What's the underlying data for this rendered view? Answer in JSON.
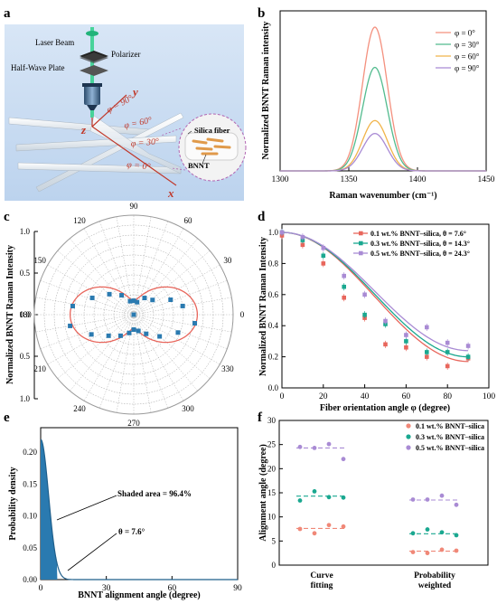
{
  "panels": {
    "a": {
      "letter": "a",
      "laser_label": "Laser Beam",
      "polarizer_label": "Polarizer",
      "hwp_label": "Half-Wave Plate",
      "silica_label": "Silica fiber",
      "bnnt_label": "BNNT",
      "phi90": "φ = 90°",
      "phi60": "φ = 60°",
      "phi30": "φ = 30°",
      "phi0": "φ = 0°",
      "axis_x": "x",
      "axis_y": "y",
      "axis_z": "z"
    },
    "b": {
      "letter": "b"
    },
    "c": {
      "letter": "c"
    },
    "d": {
      "letter": "d"
    },
    "e": {
      "letter": "e"
    },
    "f": {
      "letter": "f"
    }
  },
  "colors": {
    "red": "#e8665c",
    "green": "#3cb591",
    "orange": "#f0a93a",
    "purple": "#a98bd4",
    "blue": "#2a7ab0",
    "teal": "#1a9e8f",
    "panel_bg": "#cfe0f3"
  },
  "chart_data": [
    {
      "panel": "b",
      "type": "line",
      "xlabel": "Raman wavenumber (cm⁻¹)",
      "ylabel": "Normalized BNNT Raman intensity",
      "xlim": [
        1300,
        1450
      ],
      "xticks": [
        1300,
        1350,
        1400,
        1450
      ],
      "center": 1369,
      "width": 9,
      "series": [
        {
          "name": "φ = 0°",
          "color": "#f4907e",
          "peak": 1.0
        },
        {
          "name": "φ = 30°",
          "color": "#52bb8e",
          "peak": 0.72
        },
        {
          "name": "φ = 60°",
          "color": "#f1b44a",
          "peak": 0.35
        },
        {
          "name": "φ = 90°",
          "color": "#a98bd4",
          "peak": 0.26
        }
      ],
      "legend": "top-right"
    },
    {
      "panel": "c",
      "type": "scatter",
      "ylabel": "Normalized BNNT Raman Intensity",
      "r_ticks": [
        "0.0",
        "0.5",
        "1.0"
      ],
      "y_ticks": [
        "1.0",
        "0.5",
        "0.0",
        "0.5",
        "1.0"
      ],
      "angle_labels": [
        "0",
        "30",
        "60",
        "90",
        "120",
        "150",
        "180",
        "210",
        "240",
        "270",
        "300",
        "330"
      ],
      "points": [
        {
          "deg": 0,
          "r": 0.0
        },
        {
          "deg": 10,
          "r": 0.5
        },
        {
          "deg": 22,
          "r": 0.4
        },
        {
          "deg": 38,
          "r": 0.24
        },
        {
          "deg": 57,
          "r": 0.2
        },
        {
          "deg": 75,
          "r": 0.13
        },
        {
          "deg": 90,
          "r": 0.14
        },
        {
          "deg": 105,
          "r": 0.14
        },
        {
          "deg": 122,
          "r": 0.23
        },
        {
          "deg": 140,
          "r": 0.32
        },
        {
          "deg": 158,
          "r": 0.45
        },
        {
          "deg": 172,
          "r": 0.62
        },
        {
          "deg": 190,
          "r": 0.65
        },
        {
          "deg": 205,
          "r": 0.47
        },
        {
          "deg": 220,
          "r": 0.33
        },
        {
          "deg": 238,
          "r": 0.25
        },
        {
          "deg": 256,
          "r": 0.19
        },
        {
          "deg": 270,
          "r": 0.15
        },
        {
          "deg": 286,
          "r": 0.17
        },
        {
          "deg": 303,
          "r": 0.23
        },
        {
          "deg": 320,
          "r": 0.34
        },
        {
          "deg": 338,
          "r": 0.48
        },
        {
          "deg": 352,
          "r": 0.62
        }
      ],
      "fit": {
        "a": 0.14,
        "b": 0.5
      }
    },
    {
      "panel": "d",
      "type": "line",
      "xlabel": "Fiber orientation angle φ (degree)",
      "ylabel": "Normalized BNNT Raman Intensity",
      "xlim": [
        0,
        100
      ],
      "ylim": [
        0.0,
        1.0
      ],
      "xticks": [
        0,
        20,
        40,
        60,
        80,
        100
      ],
      "yticks": [
        "0.0",
        "0.2",
        "0.4",
        "0.6",
        "0.8",
        "1.0"
      ],
      "x": [
        0,
        10,
        20,
        30,
        40,
        50,
        60,
        70,
        80,
        90
      ],
      "series": [
        {
          "name": "0.1 wt.% BNNT–silica, θ = 7.6°",
          "color": "#e8665c",
          "values": [
            0.98,
            0.92,
            0.8,
            0.58,
            0.45,
            0.28,
            0.26,
            0.2,
            0.14,
            0.19
          ],
          "base": 0.17
        },
        {
          "name": "0.3 wt.% BNNT–silica, θ = 14.3°",
          "color": "#1aa890",
          "values": [
            1.0,
            0.95,
            0.85,
            0.65,
            0.47,
            0.41,
            0.3,
            0.23,
            0.23,
            0.2
          ],
          "base": 0.2
        },
        {
          "name": "0.5 wt.% BNNT–silica, θ = 24.3°",
          "color": "#a98bd4",
          "values": [
            1.0,
            0.97,
            0.9,
            0.72,
            0.6,
            0.43,
            0.34,
            0.39,
            0.29,
            0.27
          ],
          "base": 0.24
        }
      ],
      "legend": "top-right"
    },
    {
      "panel": "e",
      "type": "area",
      "xlabel": "BNNT alignment angle (degree)",
      "ylabel": "Probability density",
      "xlim": [
        0,
        90
      ],
      "ylim": [
        0.0,
        0.22
      ],
      "xticks": [
        0,
        30,
        60,
        90
      ],
      "yticks": [
        "0.00",
        "0.05",
        "0.10",
        "0.15",
        "0.20"
      ],
      "peak": 0.22,
      "sigma": 3.6,
      "shade_to": 7.6,
      "annotations": [
        "Shaded area = 96.4%",
        "θ = 7.6°"
      ]
    },
    {
      "panel": "f",
      "type": "scatter",
      "ylabel": "Alignment angle (degree)",
      "ylim": [
        0,
        30
      ],
      "yticks": [
        "0",
        "5",
        "10",
        "15",
        "20",
        "25",
        "30"
      ],
      "categories": [
        "Curve fitting",
        "Probability weighted"
      ],
      "category_lines": [
        [
          "Curve",
          "fitting"
        ],
        [
          "Probability",
          "weighted"
        ]
      ],
      "series": [
        {
          "name": "0.1 wt.% BNNT–silica",
          "color": "#f08878",
          "groups": [
            {
              "mean": 7.6,
              "points": [
                7.5,
                6.6,
                8.3,
                8.0
              ]
            },
            {
              "mean": 2.9,
              "points": [
                2.7,
                2.5,
                3.2,
                3.0
              ]
            }
          ]
        },
        {
          "name": "0.3 wt.% BNNT–silica",
          "color": "#1aa890",
          "groups": [
            {
              "mean": 14.3,
              "points": [
                13.4,
                15.3,
                14.1,
                14.0
              ]
            },
            {
              "mean": 6.5,
              "points": [
                6.6,
                7.4,
                6.8,
                6.2
              ]
            }
          ]
        },
        {
          "name": "0.5 wt.% BNNT–silica",
          "color": "#a98bd4",
          "groups": [
            {
              "mean": 24.3,
              "points": [
                24.5,
                24.3,
                25.1,
                22.0
              ]
            },
            {
              "mean": 13.5,
              "points": [
                13.6,
                13.6,
                14.4,
                12.5
              ]
            }
          ]
        }
      ],
      "legend": "top-right"
    }
  ]
}
